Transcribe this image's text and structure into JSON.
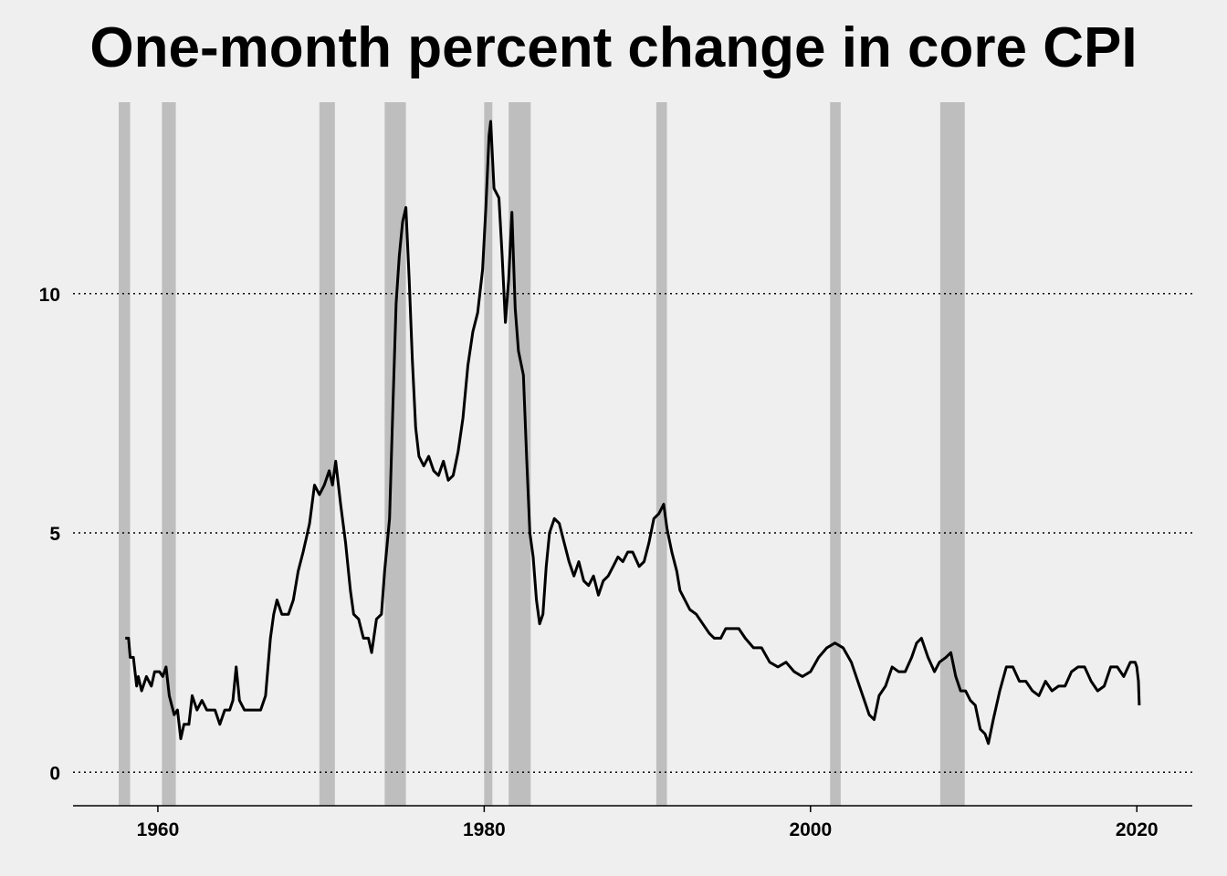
{
  "chart_data": {
    "type": "line",
    "title": "One-month percent change in core CPI",
    "xlabel": "",
    "ylabel": "",
    "xlim": [
      1954.8,
      2023.4
    ],
    "ylim": [
      -0.7,
      14.0
    ],
    "x_ticks": [
      1960,
      1980,
      2000,
      2020
    ],
    "y_ticks": [
      0,
      5,
      10
    ],
    "grid": "horizontal dotted",
    "colors": {
      "background": "#efefef",
      "line": "#000000",
      "recession": "#bebebe"
    },
    "recessions": [
      [
        1957.6,
        1958.3
      ],
      [
        1960.25,
        1961.1
      ],
      [
        1969.9,
        1970.85
      ],
      [
        1973.9,
        1975.2
      ],
      [
        1980.0,
        1980.5
      ],
      [
        1981.5,
        1982.85
      ],
      [
        1990.55,
        1991.2
      ],
      [
        2001.2,
        2001.85
      ],
      [
        2007.95,
        2009.45
      ]
    ],
    "series": [
      {
        "points": [
          [
            1958.0,
            2.8
          ],
          [
            1958.2,
            2.8
          ],
          [
            1958.3,
            2.4
          ],
          [
            1958.5,
            2.4
          ],
          [
            1958.7,
            1.8
          ],
          [
            1958.8,
            2.0
          ],
          [
            1959.0,
            1.7
          ],
          [
            1959.3,
            2.0
          ],
          [
            1959.6,
            1.8
          ],
          [
            1959.8,
            2.1
          ],
          [
            1960.1,
            2.1
          ],
          [
            1960.3,
            2.0
          ],
          [
            1960.5,
            2.2
          ],
          [
            1960.7,
            1.6
          ],
          [
            1961.0,
            1.2
          ],
          [
            1961.2,
            1.3
          ],
          [
            1961.4,
            0.7
          ],
          [
            1961.6,
            1.0
          ],
          [
            1961.9,
            1.0
          ],
          [
            1962.1,
            1.6
          ],
          [
            1962.4,
            1.3
          ],
          [
            1962.7,
            1.5
          ],
          [
            1963.0,
            1.3
          ],
          [
            1963.5,
            1.3
          ],
          [
            1963.8,
            1.0
          ],
          [
            1964.1,
            1.3
          ],
          [
            1964.4,
            1.3
          ],
          [
            1964.6,
            1.5
          ],
          [
            1964.8,
            2.2
          ],
          [
            1965.0,
            1.5
          ],
          [
            1965.3,
            1.3
          ],
          [
            1965.6,
            1.3
          ],
          [
            1966.0,
            1.3
          ],
          [
            1966.3,
            1.3
          ],
          [
            1966.6,
            1.6
          ],
          [
            1966.9,
            2.8
          ],
          [
            1967.1,
            3.3
          ],
          [
            1967.3,
            3.6
          ],
          [
            1967.6,
            3.3
          ],
          [
            1968.0,
            3.3
          ],
          [
            1968.3,
            3.6
          ],
          [
            1968.6,
            4.2
          ],
          [
            1968.9,
            4.6
          ],
          [
            1969.1,
            4.9
          ],
          [
            1969.3,
            5.2
          ],
          [
            1969.6,
            6.0
          ],
          [
            1969.9,
            5.8
          ],
          [
            1970.2,
            6.0
          ],
          [
            1970.5,
            6.3
          ],
          [
            1970.7,
            6.0
          ],
          [
            1970.9,
            6.5
          ],
          [
            1971.2,
            5.6
          ],
          [
            1971.5,
            4.8
          ],
          [
            1971.8,
            3.8
          ],
          [
            1972.0,
            3.3
          ],
          [
            1972.3,
            3.2
          ],
          [
            1972.6,
            2.8
          ],
          [
            1972.9,
            2.8
          ],
          [
            1973.1,
            2.5
          ],
          [
            1973.4,
            3.2
          ],
          [
            1973.7,
            3.3
          ],
          [
            1973.9,
            4.2
          ],
          [
            1974.2,
            5.3
          ],
          [
            1974.4,
            7.6
          ],
          [
            1974.6,
            9.8
          ],
          [
            1974.8,
            10.8
          ],
          [
            1975.0,
            11.5
          ],
          [
            1975.2,
            11.8
          ],
          [
            1975.4,
            10.3
          ],
          [
            1975.6,
            8.6
          ],
          [
            1975.8,
            7.2
          ],
          [
            1976.0,
            6.6
          ],
          [
            1976.3,
            6.4
          ],
          [
            1976.6,
            6.6
          ],
          [
            1976.9,
            6.3
          ],
          [
            1977.2,
            6.2
          ],
          [
            1977.5,
            6.5
          ],
          [
            1977.8,
            6.1
          ],
          [
            1978.1,
            6.2
          ],
          [
            1978.4,
            6.7
          ],
          [
            1978.7,
            7.4
          ],
          [
            1979.0,
            8.5
          ],
          [
            1979.3,
            9.2
          ],
          [
            1979.6,
            9.6
          ],
          [
            1979.9,
            10.5
          ],
          [
            1980.1,
            11.8
          ],
          [
            1980.3,
            13.3
          ],
          [
            1980.4,
            13.6
          ],
          [
            1980.6,
            12.2
          ],
          [
            1980.9,
            12.0
          ],
          [
            1981.1,
            10.8
          ],
          [
            1981.3,
            9.4
          ],
          [
            1981.5,
            10.3
          ],
          [
            1981.7,
            11.7
          ],
          [
            1981.9,
            9.7
          ],
          [
            1982.1,
            8.8
          ],
          [
            1982.4,
            8.3
          ],
          [
            1982.6,
            6.6
          ],
          [
            1982.8,
            5.0
          ],
          [
            1983.0,
            4.5
          ],
          [
            1983.2,
            3.6
          ],
          [
            1983.4,
            3.1
          ],
          [
            1983.6,
            3.3
          ],
          [
            1983.8,
            4.3
          ],
          [
            1984.0,
            5.0
          ],
          [
            1984.3,
            5.3
          ],
          [
            1984.6,
            5.2
          ],
          [
            1984.9,
            4.8
          ],
          [
            1985.2,
            4.4
          ],
          [
            1985.5,
            4.1
          ],
          [
            1985.8,
            4.4
          ],
          [
            1986.1,
            4.0
          ],
          [
            1986.4,
            3.9
          ],
          [
            1986.7,
            4.1
          ],
          [
            1987.0,
            3.7
          ],
          [
            1987.3,
            4.0
          ],
          [
            1987.6,
            4.1
          ],
          [
            1987.9,
            4.3
          ],
          [
            1988.2,
            4.5
          ],
          [
            1988.5,
            4.4
          ],
          [
            1988.8,
            4.6
          ],
          [
            1989.1,
            4.6
          ],
          [
            1989.5,
            4.3
          ],
          [
            1989.8,
            4.4
          ],
          [
            1990.1,
            4.8
          ],
          [
            1990.4,
            5.3
          ],
          [
            1990.7,
            5.4
          ],
          [
            1991.0,
            5.6
          ],
          [
            1991.2,
            5.1
          ],
          [
            1991.5,
            4.6
          ],
          [
            1991.8,
            4.2
          ],
          [
            1992.0,
            3.8
          ],
          [
            1992.3,
            3.6
          ],
          [
            1992.6,
            3.4
          ],
          [
            1993.0,
            3.3
          ],
          [
            1993.4,
            3.1
          ],
          [
            1993.8,
            2.9
          ],
          [
            1994.1,
            2.8
          ],
          [
            1994.5,
            2.8
          ],
          [
            1994.8,
            3.0
          ],
          [
            1995.2,
            3.0
          ],
          [
            1995.6,
            3.0
          ],
          [
            1996.0,
            2.8
          ],
          [
            1996.5,
            2.6
          ],
          [
            1997.0,
            2.6
          ],
          [
            1997.5,
            2.3
          ],
          [
            1998.0,
            2.2
          ],
          [
            1998.5,
            2.3
          ],
          [
            1999.0,
            2.1
          ],
          [
            1999.5,
            2.0
          ],
          [
            2000.0,
            2.1
          ],
          [
            2000.5,
            2.4
          ],
          [
            2001.0,
            2.6
          ],
          [
            2001.5,
            2.7
          ],
          [
            2002.0,
            2.6
          ],
          [
            2002.5,
            2.3
          ],
          [
            2003.0,
            1.8
          ],
          [
            2003.3,
            1.5
          ],
          [
            2003.6,
            1.2
          ],
          [
            2003.9,
            1.1
          ],
          [
            2004.2,
            1.6
          ],
          [
            2004.6,
            1.8
          ],
          [
            2005.0,
            2.2
          ],
          [
            2005.4,
            2.1
          ],
          [
            2005.8,
            2.1
          ],
          [
            2006.2,
            2.4
          ],
          [
            2006.5,
            2.7
          ],
          [
            2006.8,
            2.8
          ],
          [
            2007.2,
            2.4
          ],
          [
            2007.6,
            2.1
          ],
          [
            2007.9,
            2.3
          ],
          [
            2008.3,
            2.4
          ],
          [
            2008.6,
            2.5
          ],
          [
            2008.9,
            2.0
          ],
          [
            2009.2,
            1.7
          ],
          [
            2009.5,
            1.7
          ],
          [
            2009.8,
            1.5
          ],
          [
            2010.1,
            1.4
          ],
          [
            2010.4,
            0.9
          ],
          [
            2010.7,
            0.8
          ],
          [
            2010.9,
            0.6
          ],
          [
            2011.2,
            1.1
          ],
          [
            2011.6,
            1.7
          ],
          [
            2012.0,
            2.2
          ],
          [
            2012.4,
            2.2
          ],
          [
            2012.8,
            1.9
          ],
          [
            2013.2,
            1.9
          ],
          [
            2013.6,
            1.7
          ],
          [
            2014.0,
            1.6
          ],
          [
            2014.4,
            1.9
          ],
          [
            2014.8,
            1.7
          ],
          [
            2015.2,
            1.8
          ],
          [
            2015.6,
            1.8
          ],
          [
            2016.0,
            2.1
          ],
          [
            2016.4,
            2.2
          ],
          [
            2016.8,
            2.2
          ],
          [
            2017.2,
            1.9
          ],
          [
            2017.6,
            1.7
          ],
          [
            2018.0,
            1.8
          ],
          [
            2018.4,
            2.2
          ],
          [
            2018.8,
            2.2
          ],
          [
            2019.2,
            2.0
          ],
          [
            2019.6,
            2.3
          ],
          [
            2019.9,
            2.3
          ],
          [
            2020.0,
            2.2
          ],
          [
            2020.1,
            1.9
          ],
          [
            2020.15,
            1.4
          ]
        ]
      }
    ]
  }
}
